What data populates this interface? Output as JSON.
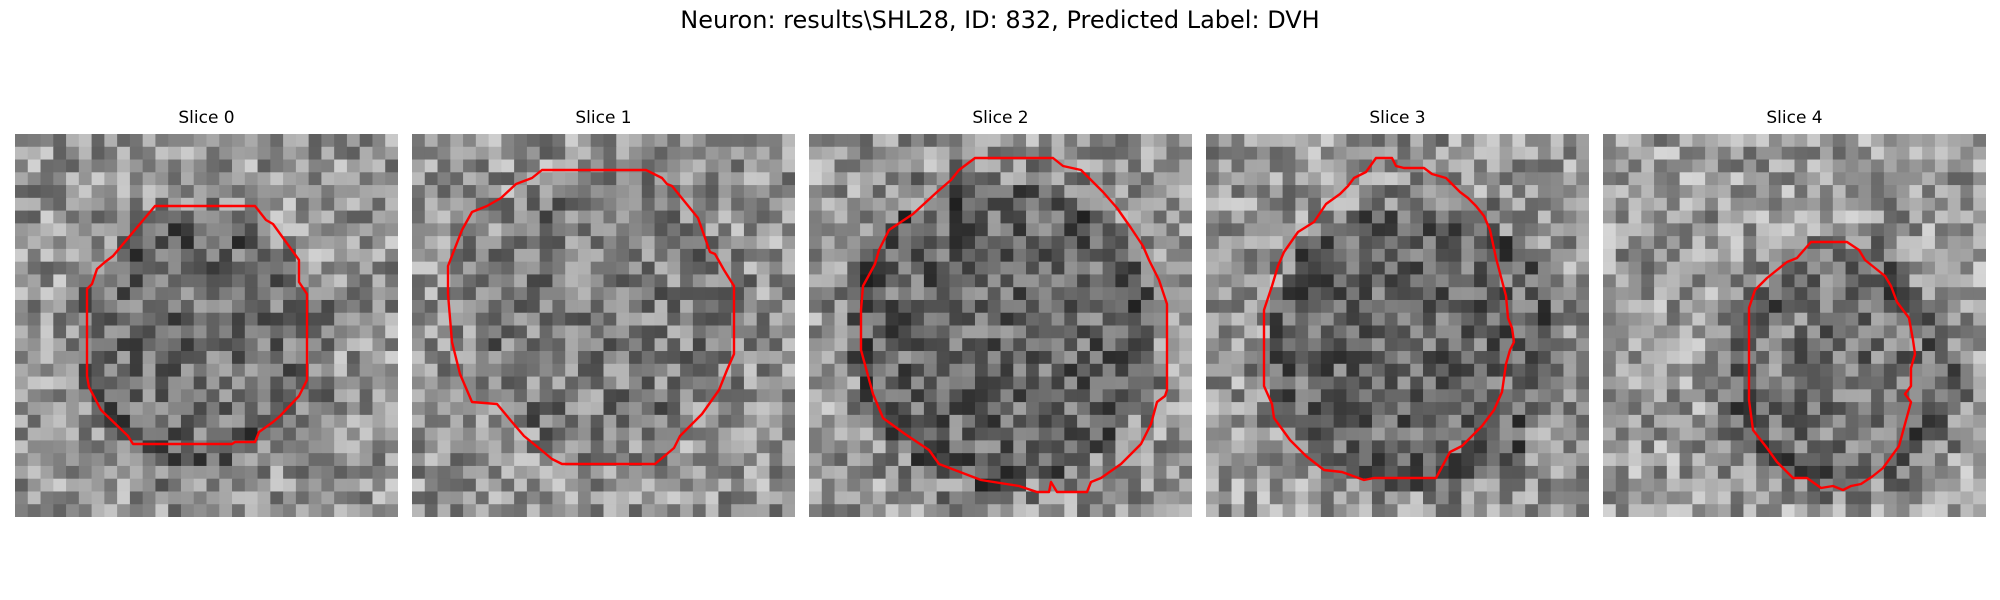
{
  "figure": {
    "title": "Neuron: results\\SHL28, ID: 832, Predicted Label: DVH"
  },
  "colors": {
    "contour": "#ff0000",
    "background": "#ffffff",
    "colormap": "gray"
  },
  "panels": [
    {
      "title": "Slice 0",
      "contour_icon": "red-roi-contour"
    },
    {
      "title": "Slice 1",
      "contour_icon": "red-roi-contour"
    },
    {
      "title": "Slice 2",
      "contour_icon": "red-roi-contour"
    },
    {
      "title": "Slice 3",
      "contour_icon": "red-roi-contour"
    },
    {
      "title": "Slice 4",
      "contour_icon": "red-roi-contour"
    }
  ]
}
